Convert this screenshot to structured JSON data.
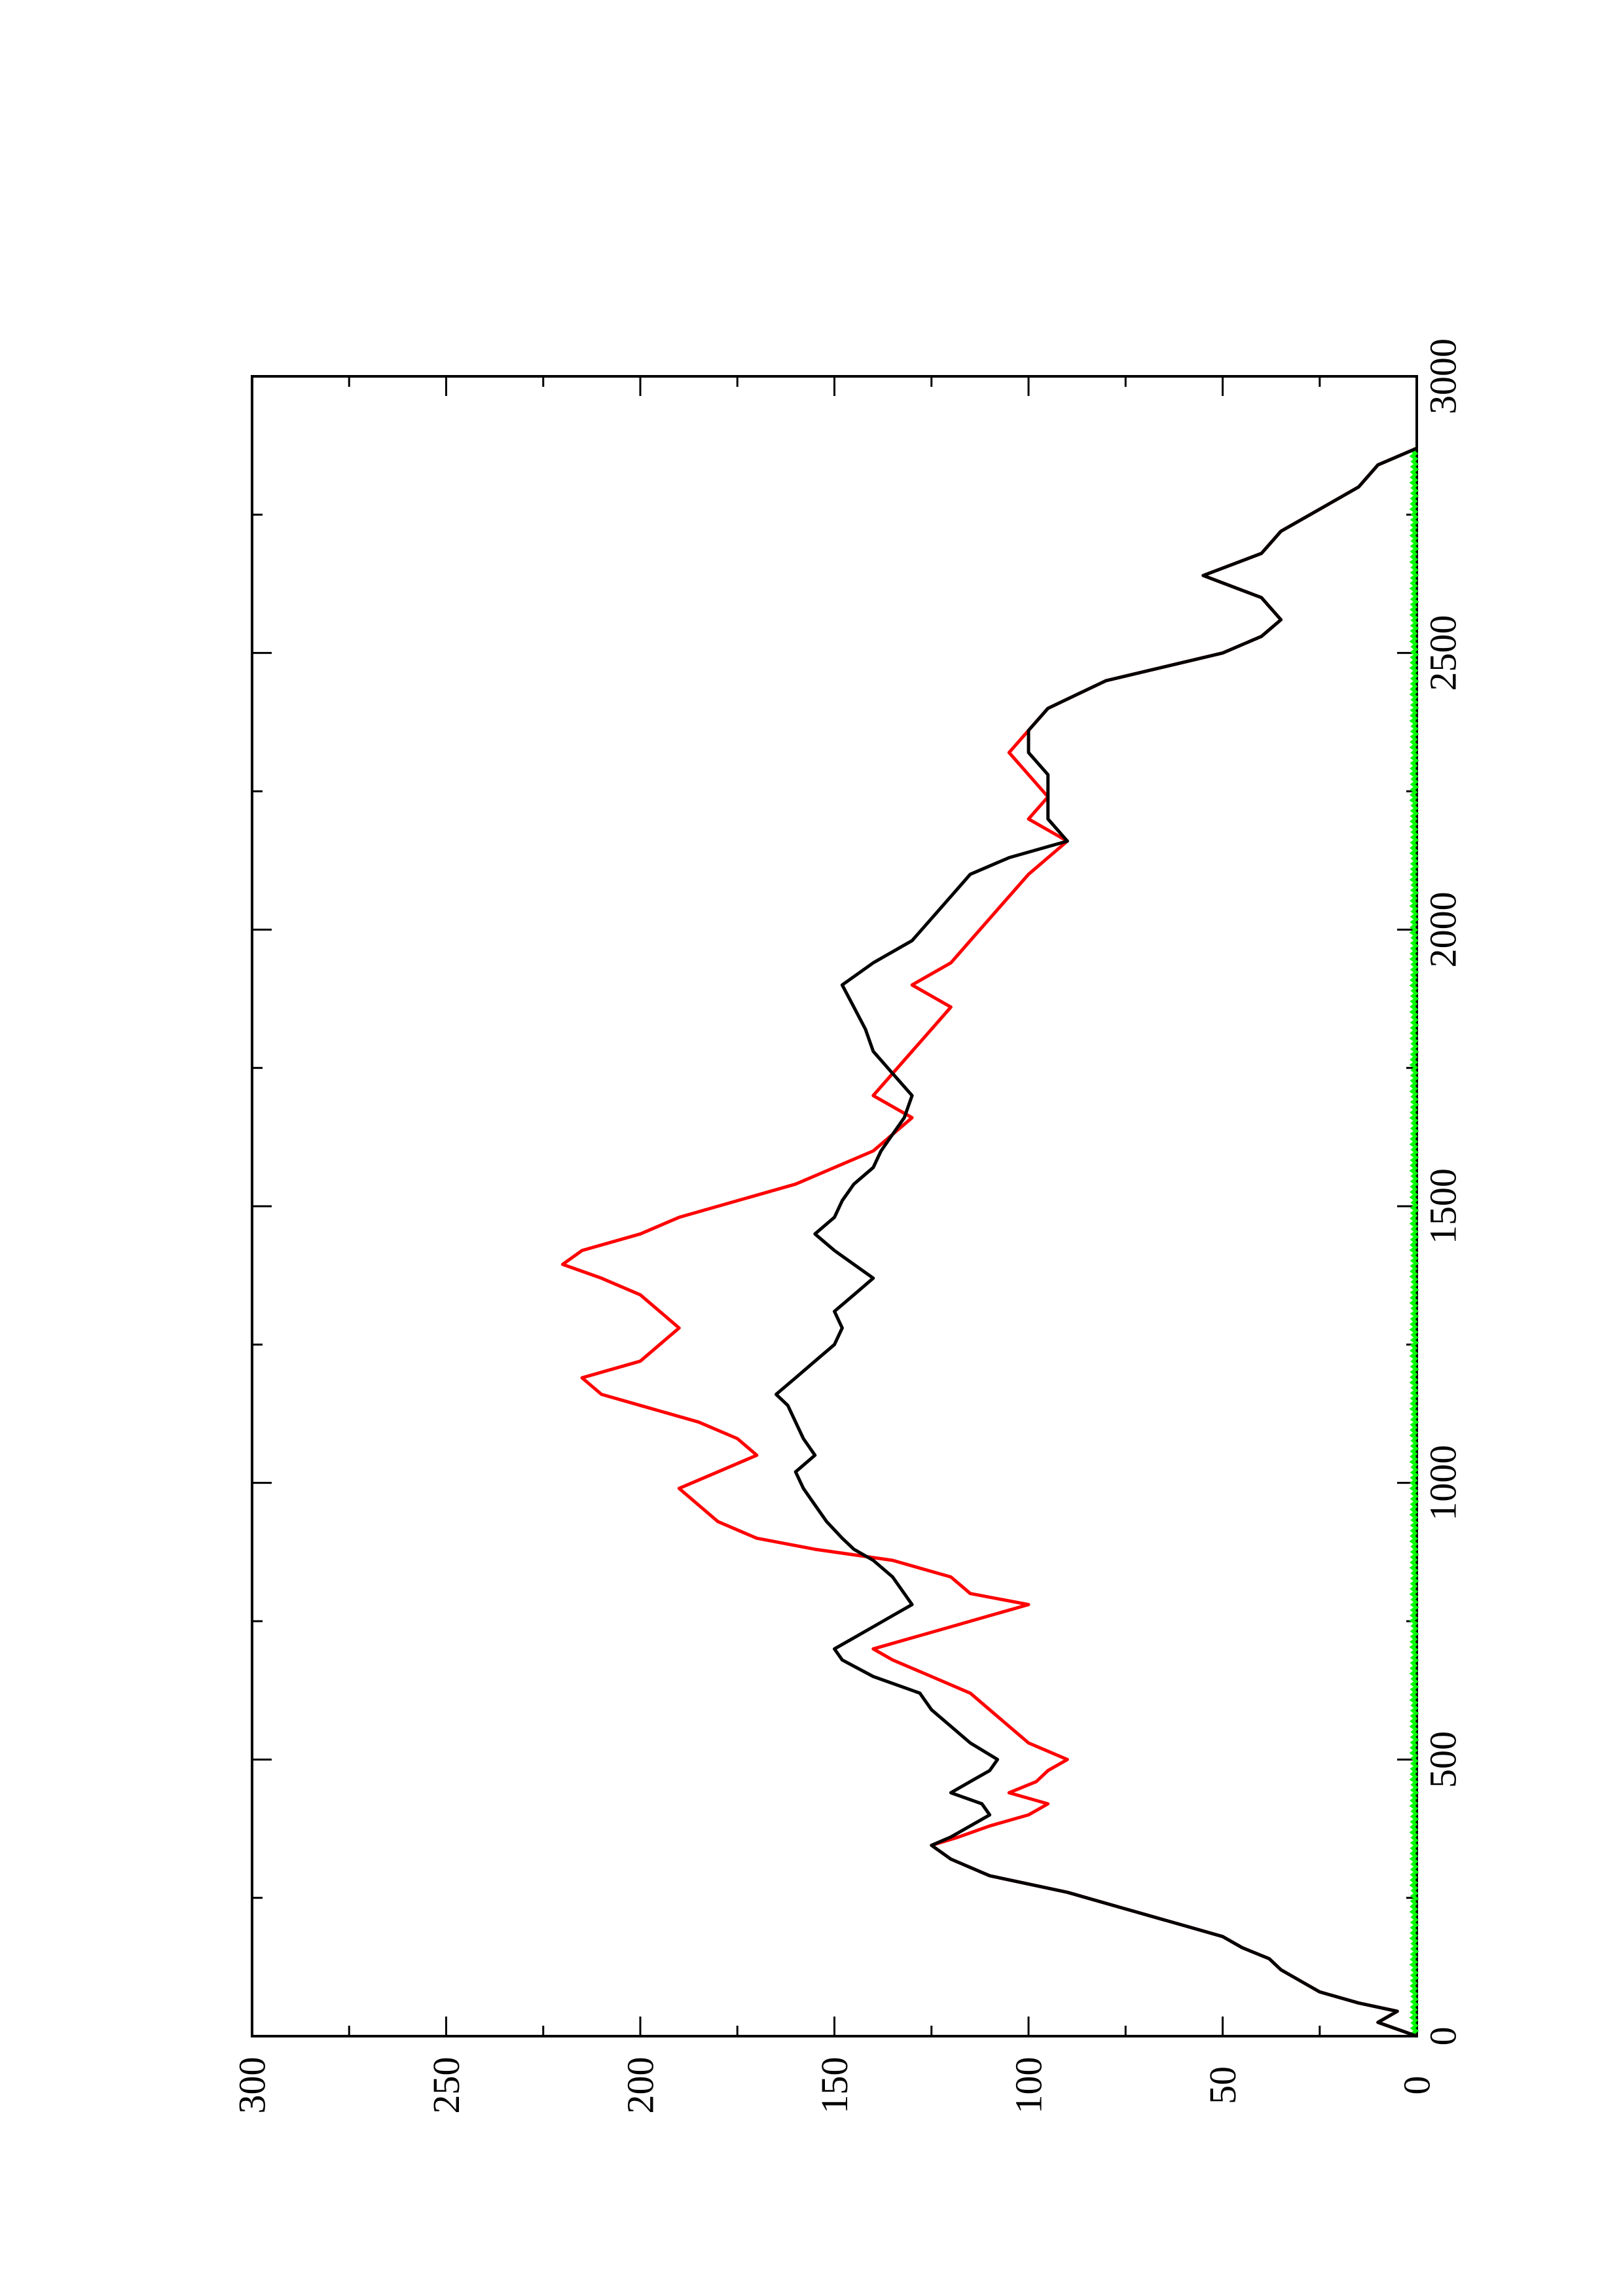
{
  "chart_data": {
    "type": "line",
    "title": "",
    "xlabel": "",
    "ylabel": "",
    "xlim": [
      0,
      3000
    ],
    "ylim": [
      0,
      300
    ],
    "x_ticks": [
      0,
      500,
      1000,
      1500,
      2000,
      2500,
      3000
    ],
    "x_tick_labels": [
      "0",
      "500",
      "1000",
      "1500",
      "2000",
      "2500",
      "3000"
    ],
    "y_ticks": [
      0,
      50,
      100,
      150,
      200,
      250,
      300
    ],
    "y_tick_labels": [
      "0",
      "50",
      "100",
      "150",
      "200",
      "250",
      "300"
    ],
    "minor_x_step": 250,
    "minor_y_step": 25,
    "orientation": "rotated 90 degrees counterclockwise",
    "grid": false,
    "legend": "none",
    "series": [
      {
        "color": "#ff0000",
        "x": [
          0,
          25,
          45,
          60,
          80,
          100,
          120,
          140,
          160,
          180,
          200,
          230,
          260,
          290,
          320,
          345,
          360,
          380,
          400,
          420,
          440,
          460,
          480,
          500,
          530,
          560,
          590,
          620,
          650,
          680,
          700,
          720,
          740,
          760,
          780,
          800,
          830,
          860,
          880,
          900,
          930,
          960,
          990,
          1020,
          1050,
          1080,
          1110,
          1140,
          1160,
          1190,
          1220,
          1250,
          1280,
          1310,
          1340,
          1370,
          1395,
          1420,
          1450,
          1480,
          1510,
          1540,
          1570,
          1600,
          1630,
          1660,
          1700,
          1740,
          1780,
          1820,
          1860,
          1900,
          1940,
          1980,
          2020,
          2060,
          2100,
          2130,
          2160,
          2200,
          2240,
          2280,
          2320,
          2360,
          2400,
          2450,
          2500,
          2530,
          2560,
          2600,
          2640,
          2680,
          2720,
          2760,
          2800,
          2840,
          2870
        ],
        "y": [
          0,
          10,
          5,
          15,
          25,
          30,
          35,
          38,
          45,
          50,
          60,
          75,
          90,
          110,
          120,
          125,
          118,
          110,
          100,
          95,
          105,
          98,
          95,
          90,
          100,
          105,
          110,
          115,
          125,
          135,
          140,
          130,
          120,
          110,
          100,
          115,
          120,
          135,
          155,
          170,
          180,
          185,
          190,
          180,
          170,
          175,
          185,
          200,
          210,
          215,
          200,
          195,
          190,
          195,
          200,
          210,
          220,
          215,
          200,
          190,
          175,
          160,
          150,
          140,
          135,
          130,
          140,
          135,
          130,
          125,
          120,
          130,
          120,
          115,
          110,
          105,
          100,
          95,
          90,
          100,
          95,
          100,
          105,
          100,
          95,
          80,
          50,
          40,
          35,
          40,
          55,
          40,
          35,
          25,
          15,
          10,
          0
        ]
      },
      {
        "color": "#000000",
        "x": [
          0,
          25,
          45,
          60,
          80,
          100,
          120,
          140,
          160,
          180,
          200,
          230,
          260,
          290,
          320,
          345,
          360,
          380,
          400,
          420,
          440,
          460,
          480,
          500,
          530,
          560,
          590,
          620,
          650,
          680,
          700,
          720,
          740,
          760,
          780,
          800,
          830,
          860,
          880,
          900,
          930,
          960,
          990,
          1020,
          1050,
          1080,
          1110,
          1140,
          1160,
          1190,
          1220,
          1250,
          1280,
          1310,
          1340,
          1370,
          1395,
          1420,
          1450,
          1480,
          1510,
          1540,
          1570,
          1600,
          1630,
          1660,
          1700,
          1740,
          1780,
          1820,
          1860,
          1900,
          1940,
          1980,
          2020,
          2060,
          2100,
          2130,
          2160,
          2200,
          2240,
          2280,
          2320,
          2360,
          2400,
          2450,
          2500,
          2530,
          2560,
          2600,
          2640,
          2680,
          2720,
          2760,
          2800,
          2840,
          2870
        ],
        "y": [
          0,
          10,
          5,
          15,
          25,
          30,
          35,
          38,
          45,
          50,
          60,
          75,
          90,
          110,
          120,
          125,
          120,
          115,
          110,
          112,
          120,
          115,
          110,
          108,
          115,
          120,
          125,
          128,
          140,
          148,
          150,
          145,
          140,
          135,
          130,
          132,
          135,
          140,
          145,
          148,
          152,
          155,
          158,
          160,
          155,
          158,
          160,
          162,
          165,
          160,
          155,
          150,
          148,
          150,
          145,
          140,
          145,
          150,
          155,
          150,
          148,
          145,
          140,
          138,
          135,
          132,
          130,
          135,
          140,
          142,
          145,
          148,
          140,
          130,
          125,
          120,
          115,
          105,
          90,
          95,
          95,
          95,
          100,
          100,
          95,
          80,
          50,
          40,
          35,
          40,
          55,
          40,
          35,
          25,
          15,
          10,
          0
        ]
      },
      {
        "color": "#00ff00",
        "x": [
          0,
          2870
        ],
        "y": [
          0,
          0
        ]
      }
    ]
  }
}
